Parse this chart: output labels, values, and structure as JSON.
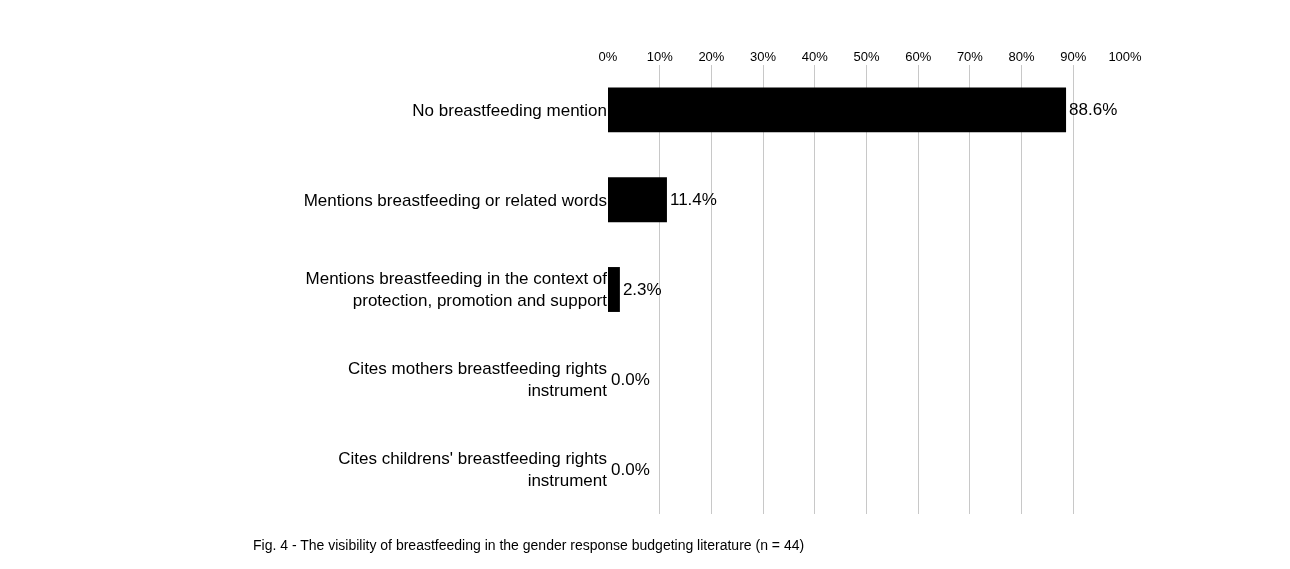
{
  "chart_data": {
    "type": "bar",
    "orientation": "horizontal",
    "categories": [
      "No breastfeeding mention",
      "Mentions breastfeeding or related words",
      "Mentions breastfeeding in the context of protection, promotion and support",
      "Cites mothers breastfeeding rights instrument",
      "Cites childrens' breastfeeding rights instrument"
    ],
    "values": [
      88.6,
      11.4,
      2.3,
      0.0,
      0.0
    ],
    "value_labels": [
      "88.6%",
      "11.4%",
      "2.3%",
      "0.0%",
      "0.0%"
    ],
    "color": "#000000",
    "xlim": [
      0,
      100
    ],
    "xticks": [
      {
        "value": 0,
        "label": "0%"
      },
      {
        "value": 10,
        "label": "10%"
      },
      {
        "value": 20,
        "label": "20%"
      },
      {
        "value": 30,
        "label": "30%"
      },
      {
        "value": 40,
        "label": "40%"
      },
      {
        "value": 50,
        "label": "50%"
      },
      {
        "value": 60,
        "label": "60%"
      },
      {
        "value": 70,
        "label": "70%"
      },
      {
        "value": 80,
        "label": "80%"
      },
      {
        "value": 90,
        "label": "90%"
      },
      {
        "value": 100,
        "label": "100%"
      }
    ],
    "grid": "x",
    "annotations": [
      "Fig. 4 - The visibility of breastfeeding in the gender response budgeting literature (n = 44)"
    ]
  }
}
